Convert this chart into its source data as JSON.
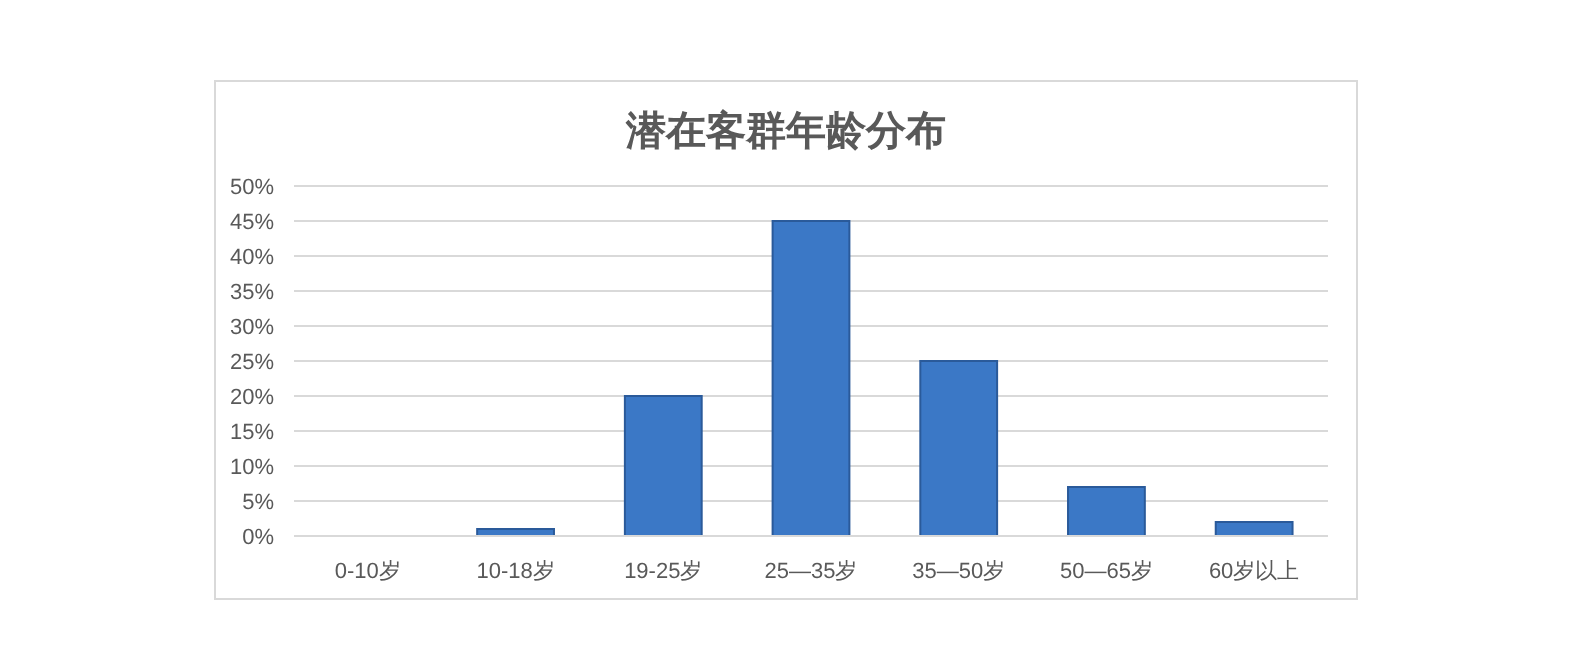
{
  "chart_data": {
    "type": "bar",
    "title": "潜在客群年龄分布",
    "categories": [
      "0-10岁",
      "10-18岁",
      "19-25岁",
      "25—35岁",
      "35—50岁",
      "50—65岁",
      "60岁以上"
    ],
    "values": [
      0,
      1,
      20,
      45,
      25,
      7,
      2
    ],
    "color": "#3b78c6",
    "ylim": [
      0,
      50
    ],
    "yticks": [
      {
        "value": 0,
        "label": "0%"
      },
      {
        "value": 5,
        "label": "5%"
      },
      {
        "value": 10,
        "label": "10%"
      },
      {
        "value": 15,
        "label": "15%"
      },
      {
        "value": 20,
        "label": "20%"
      },
      {
        "value": 25,
        "label": "25%"
      },
      {
        "value": 30,
        "label": "30%"
      },
      {
        "value": 35,
        "label": "35%"
      },
      {
        "value": 40,
        "label": "40%"
      },
      {
        "value": 45,
        "label": "45%"
      },
      {
        "value": 50,
        "label": "50%"
      }
    ],
    "grid": "y"
  }
}
